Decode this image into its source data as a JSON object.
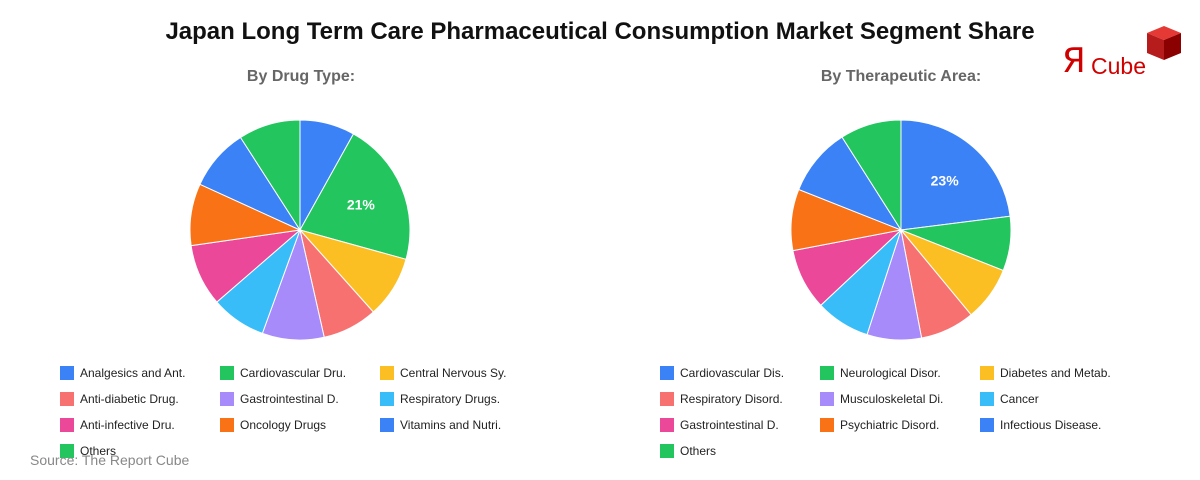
{
  "title": "Japan Long Term Care Pharmaceutical Consumption Market Segment Share",
  "source": "Source: The Report Cube",
  "logo": {
    "mark": "Я",
    "word": "Cube"
  },
  "chart_data": [
    {
      "type": "pie",
      "title": "By Drug Type:",
      "start_angle_deg": 0,
      "direction": "clockwise",
      "slices": [
        {
          "label": "Analgesics and Ant.",
          "value": 8,
          "color": "#3b82f6",
          "display": ""
        },
        {
          "label": "Cardiovascular Dru.",
          "value": 21,
          "color": "#22c55e",
          "display": "21%"
        },
        {
          "label": "Central Nervous Sy.",
          "value": 9,
          "color": "#fbbf24",
          "display": ""
        },
        {
          "label": "Anti-diabetic Drug.",
          "value": 8,
          "color": "#f87171",
          "display": ""
        },
        {
          "label": "Gastrointestinal D.",
          "value": 9,
          "color": "#a78bfa",
          "display": ""
        },
        {
          "label": "Respiratory Drugs.",
          "value": 8,
          "color": "#38bdf8",
          "display": ""
        },
        {
          "label": "Anti-infective Dru.",
          "value": 9,
          "color": "#ec4899",
          "display": ""
        },
        {
          "label": "Oncology Drugs",
          "value": 9,
          "color": "#f97316",
          "display": ""
        },
        {
          "label": "Vitamins and Nutri.",
          "value": 9,
          "color": "#3b82f6",
          "display": ""
        },
        {
          "label": "Others",
          "value": 9,
          "color": "#22c55e",
          "display": ""
        }
      ]
    },
    {
      "type": "pie",
      "title": "By Therapeutic Area:",
      "start_angle_deg": 0,
      "direction": "clockwise",
      "slices": [
        {
          "label": "Cardiovascular Dis.",
          "value": 23,
          "color": "#3b82f6",
          "display": "23%"
        },
        {
          "label": "Neurological Disor.",
          "value": 8,
          "color": "#22c55e",
          "display": ""
        },
        {
          "label": "Diabetes and Metab.",
          "value": 8,
          "color": "#fbbf24",
          "display": ""
        },
        {
          "label": "Respiratory Disord.",
          "value": 8,
          "color": "#f87171",
          "display": ""
        },
        {
          "label": "Musculoskeletal Di.",
          "value": 8,
          "color": "#a78bfa",
          "display": ""
        },
        {
          "label": "Cancer",
          "value": 8,
          "color": "#38bdf8",
          "display": ""
        },
        {
          "label": "Gastrointestinal D.",
          "value": 9,
          "color": "#ec4899",
          "display": ""
        },
        {
          "label": "Psychiatric Disord.",
          "value": 9,
          "color": "#f97316",
          "display": ""
        },
        {
          "label": "Infectious Disease.",
          "value": 10,
          "color": "#3b82f6",
          "display": ""
        },
        {
          "label": "Others",
          "value": 9,
          "color": "#22c55e",
          "display": ""
        }
      ]
    }
  ]
}
